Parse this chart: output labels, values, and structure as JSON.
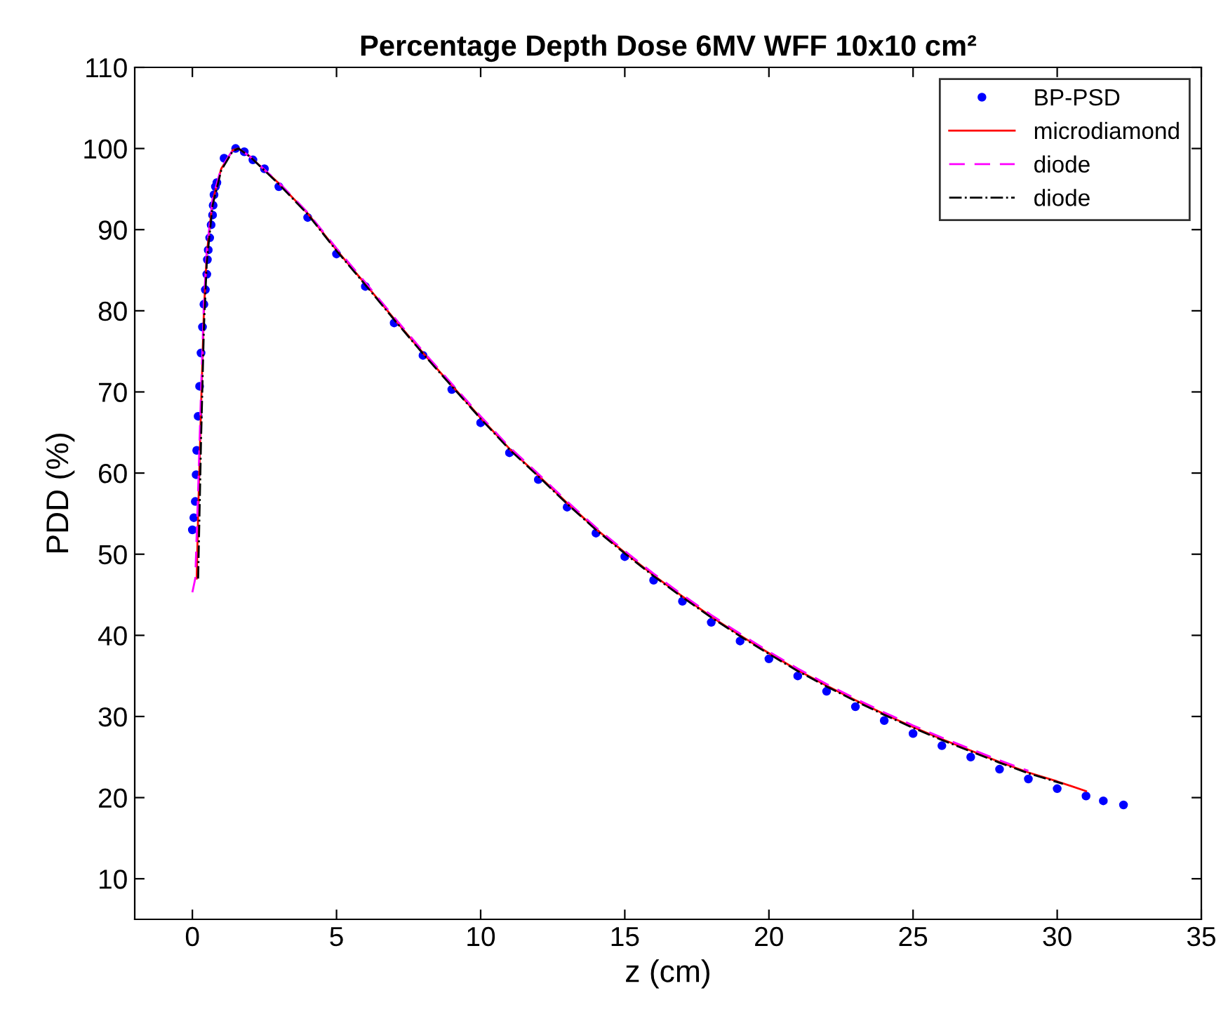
{
  "chart_data": {
    "type": "line",
    "title": "Percentage Depth Dose 6MV WFF 10x10 cm²",
    "xlabel": "z (cm)",
    "ylabel": "PDD (%)",
    "xlim": [
      -2,
      35
    ],
    "ylim": [
      5,
      110
    ],
    "xticks": [
      0,
      5,
      10,
      15,
      20,
      25,
      30,
      35
    ],
    "yticks": [
      10,
      20,
      30,
      40,
      50,
      60,
      70,
      80,
      90,
      100,
      110
    ],
    "grid": false,
    "legend": "top right",
    "series": [
      {
        "name": "BP-PSD",
        "type": "scatter",
        "marker": "circle",
        "color": "#0000ff",
        "x": [
          0.0,
          0.05,
          0.1,
          0.13,
          0.15,
          0.2,
          0.25,
          0.3,
          0.35,
          0.4,
          0.45,
          0.5,
          0.52,
          0.55,
          0.6,
          0.65,
          0.7,
          0.72,
          0.75,
          0.8,
          0.85,
          1.1,
          1.5,
          1.8,
          2.1,
          2.5,
          3,
          4,
          5,
          6,
          7,
          8,
          9,
          10,
          11,
          12,
          13,
          14,
          15,
          16,
          17,
          18,
          19,
          20,
          21,
          22,
          23,
          24,
          25,
          26,
          27,
          28,
          29,
          30,
          31,
          31.6,
          32.3
        ],
        "values": [
          53,
          54.5,
          56.5,
          59.8,
          62.8,
          67,
          70.7,
          74.8,
          78,
          80.8,
          82.6,
          84.5,
          86.3,
          87.5,
          89,
          90.6,
          91.8,
          93,
          94.3,
          95.3,
          95.8,
          98.8,
          100,
          99.6,
          98.6,
          97.5,
          95.3,
          91.5,
          87,
          83,
          78.5,
          74.5,
          70.3,
          66.2,
          62.5,
          59.2,
          55.8,
          52.6,
          49.7,
          46.8,
          44.2,
          41.6,
          39.3,
          37.1,
          35,
          33.1,
          31.2,
          29.5,
          27.9,
          26.4,
          25,
          23.5,
          22.3,
          21.1,
          20.2,
          19.6,
          19.1
        ]
      },
      {
        "name": "microdiamond",
        "line_style": "solid",
        "color": "#ff0000",
        "x": [
          0.15,
          0.2,
          0.3,
          0.4,
          0.5,
          0.7,
          1.0,
          1.4,
          1.6,
          2,
          3,
          4,
          5,
          6,
          7,
          8,
          9,
          10,
          11,
          12,
          13,
          14,
          15,
          16,
          17,
          18,
          19,
          20,
          21,
          22,
          23,
          24,
          25,
          26,
          27,
          28,
          29,
          30,
          31
        ],
        "values": [
          47,
          55,
          68,
          80,
          87,
          93.5,
          97.5,
          99.8,
          100,
          99,
          95.7,
          92,
          87.5,
          83.3,
          79,
          74.8,
          70.8,
          66.8,
          63,
          59.7,
          56.3,
          53.1,
          50.2,
          47.4,
          44.8,
          42.3,
          40,
          37.8,
          35.7,
          33.8,
          32,
          30.3,
          28.7,
          27.2,
          25.8,
          24.4,
          23.1,
          22,
          20.8
        ]
      },
      {
        "name": "diode",
        "line_style": "dashed",
        "color": "#ff00ff",
        "x": [
          0.0,
          0.1,
          0.2,
          0.3,
          0.4,
          0.5,
          0.7,
          1.0,
          1.4,
          1.6,
          2,
          3,
          4,
          5,
          6,
          7,
          8,
          9,
          10,
          11,
          12,
          13,
          14,
          15,
          16,
          17,
          18,
          19,
          20,
          21,
          22,
          23,
          24,
          25,
          26,
          27,
          28,
          29
        ],
        "values": [
          45.3,
          47,
          58,
          70,
          81,
          87.5,
          93.8,
          97.6,
          99.8,
          100,
          99,
          95.8,
          92.1,
          87.7,
          83.5,
          79.2,
          75,
          71,
          67,
          63.2,
          59.9,
          56.5,
          53.3,
          50.4,
          47.6,
          45,
          42.5,
          40.2,
          38,
          35.9,
          34,
          32.2,
          30.5,
          28.9,
          27.4,
          26,
          24.6,
          23.3
        ]
      },
      {
        "name": "diode",
        "line_style": "dashdot",
        "color": "#000000",
        "x": [
          0.2,
          0.3,
          0.4,
          0.5,
          0.7,
          1.0,
          1.4,
          1.6,
          2,
          3,
          4,
          5,
          6,
          7,
          8,
          9,
          10,
          11,
          12,
          13,
          14,
          15,
          16,
          17,
          18,
          19,
          20,
          21,
          22,
          23,
          24,
          25,
          26,
          27,
          28,
          29,
          30.2
        ],
        "values": [
          47,
          64,
          78,
          86,
          93,
          97.3,
          99.7,
          100,
          99,
          95.6,
          91.9,
          87.4,
          83.2,
          78.9,
          74.7,
          70.7,
          66.7,
          62.9,
          59.6,
          56.2,
          53,
          50.1,
          47.3,
          44.7,
          42.2,
          39.9,
          37.7,
          35.6,
          33.7,
          31.9,
          30.2,
          28.6,
          27.1,
          25.7,
          24.3,
          23,
          21.7
        ]
      }
    ]
  }
}
